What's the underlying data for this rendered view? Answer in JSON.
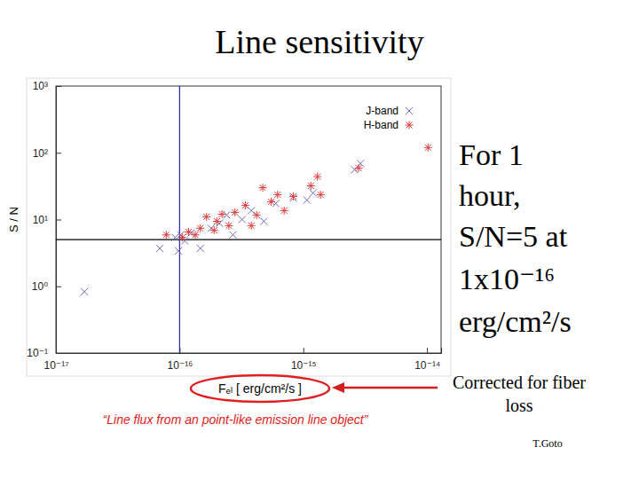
{
  "chart_data": {
    "type": "scatter",
    "title": "Line sensitivity",
    "x_label": "Fₑₗ [ erg/cm²/s ]",
    "y_label": "S / N",
    "log": true,
    "legend": "top-right",
    "xlim": [
      1e-17,
      1.3e-14
    ],
    "ylim": [
      0.1,
      1000
    ],
    "xticks": [
      {
        "value": 1e-17,
        "label": "10⁻¹⁷"
      },
      {
        "value": 1e-16,
        "label": "10⁻¹⁶"
      },
      {
        "value": 1e-15,
        "label": "10⁻¹⁵"
      },
      {
        "value": 1e-14,
        "label": "10⁻¹⁴"
      }
    ],
    "yticks": [
      {
        "value": 0.1,
        "label": "10⁻¹"
      },
      {
        "value": 1,
        "label": "10⁰"
      },
      {
        "value": 10,
        "label": "10¹"
      },
      {
        "value": 100,
        "label": "10²"
      },
      {
        "value": 1000,
        "label": "10³"
      }
    ],
    "hline": 5,
    "vline": 1e-16,
    "series": [
      {
        "name": "J-band",
        "color": "#6b6bb8",
        "marker": "x",
        "x": [
          1.7e-17,
          6.9e-17,
          9.2e-17,
          1.02e-16,
          1.1e-16,
          9.8e-17,
          1.24e-16,
          1.47e-16,
          1.8e-16,
          2.1e-16,
          2.4e-16,
          2.7e-16,
          3.2e-16,
          3.8e-16,
          4.8e-16,
          6e-16,
          8.3e-16,
          1.07e-15,
          1.2e-15,
          2.6e-15,
          2.9e-15
        ],
        "y": [
          0.83,
          3.7,
          5.4,
          5.9,
          4.8,
          3.4,
          6.3,
          3.7,
          7.4,
          8.8,
          11.7,
          5.9,
          10,
          13.6,
          9.4,
          17.4,
          20.9,
          19.6,
          25,
          55.8,
          69
        ]
      },
      {
        "name": "H-band",
        "color": "#e03c3c",
        "marker": "asterisk",
        "x": [
          7.8e-17,
          1.05e-16,
          1.18e-16,
          1.34e-16,
          1.47e-16,
          1.65e-16,
          1.9e-16,
          2e-16,
          2.2e-16,
          2.5e-16,
          2.8e-16,
          3.4e-16,
          3.8e-16,
          4.2e-16,
          4.7e-16,
          5.5e-16,
          6.2e-16,
          7e-16,
          8.3e-16,
          1.15e-15,
          1.3e-15,
          1.38e-15,
          2.8e-15,
          1.02e-14
        ],
        "y": [
          5.9,
          5.4,
          6.5,
          5.9,
          7.4,
          11,
          6.9,
          9.4,
          12,
          8.1,
          12.8,
          16.3,
          8.1,
          11.7,
          30,
          18.5,
          23.6,
          13.6,
          22.2,
          32,
          44,
          23.6,
          59,
          120
        ]
      }
    ],
    "annotations": {
      "summary": [
        "For 1",
        "hour,",
        "S/N=5 at",
        "1x10⁻¹⁶",
        "erg/cm²/s"
      ],
      "arrow_note": [
        "Corrected for fiber",
        "loss"
      ],
      "caption": "“Line flux from an point-like emission line object”",
      "credit": "T.Goto"
    }
  }
}
